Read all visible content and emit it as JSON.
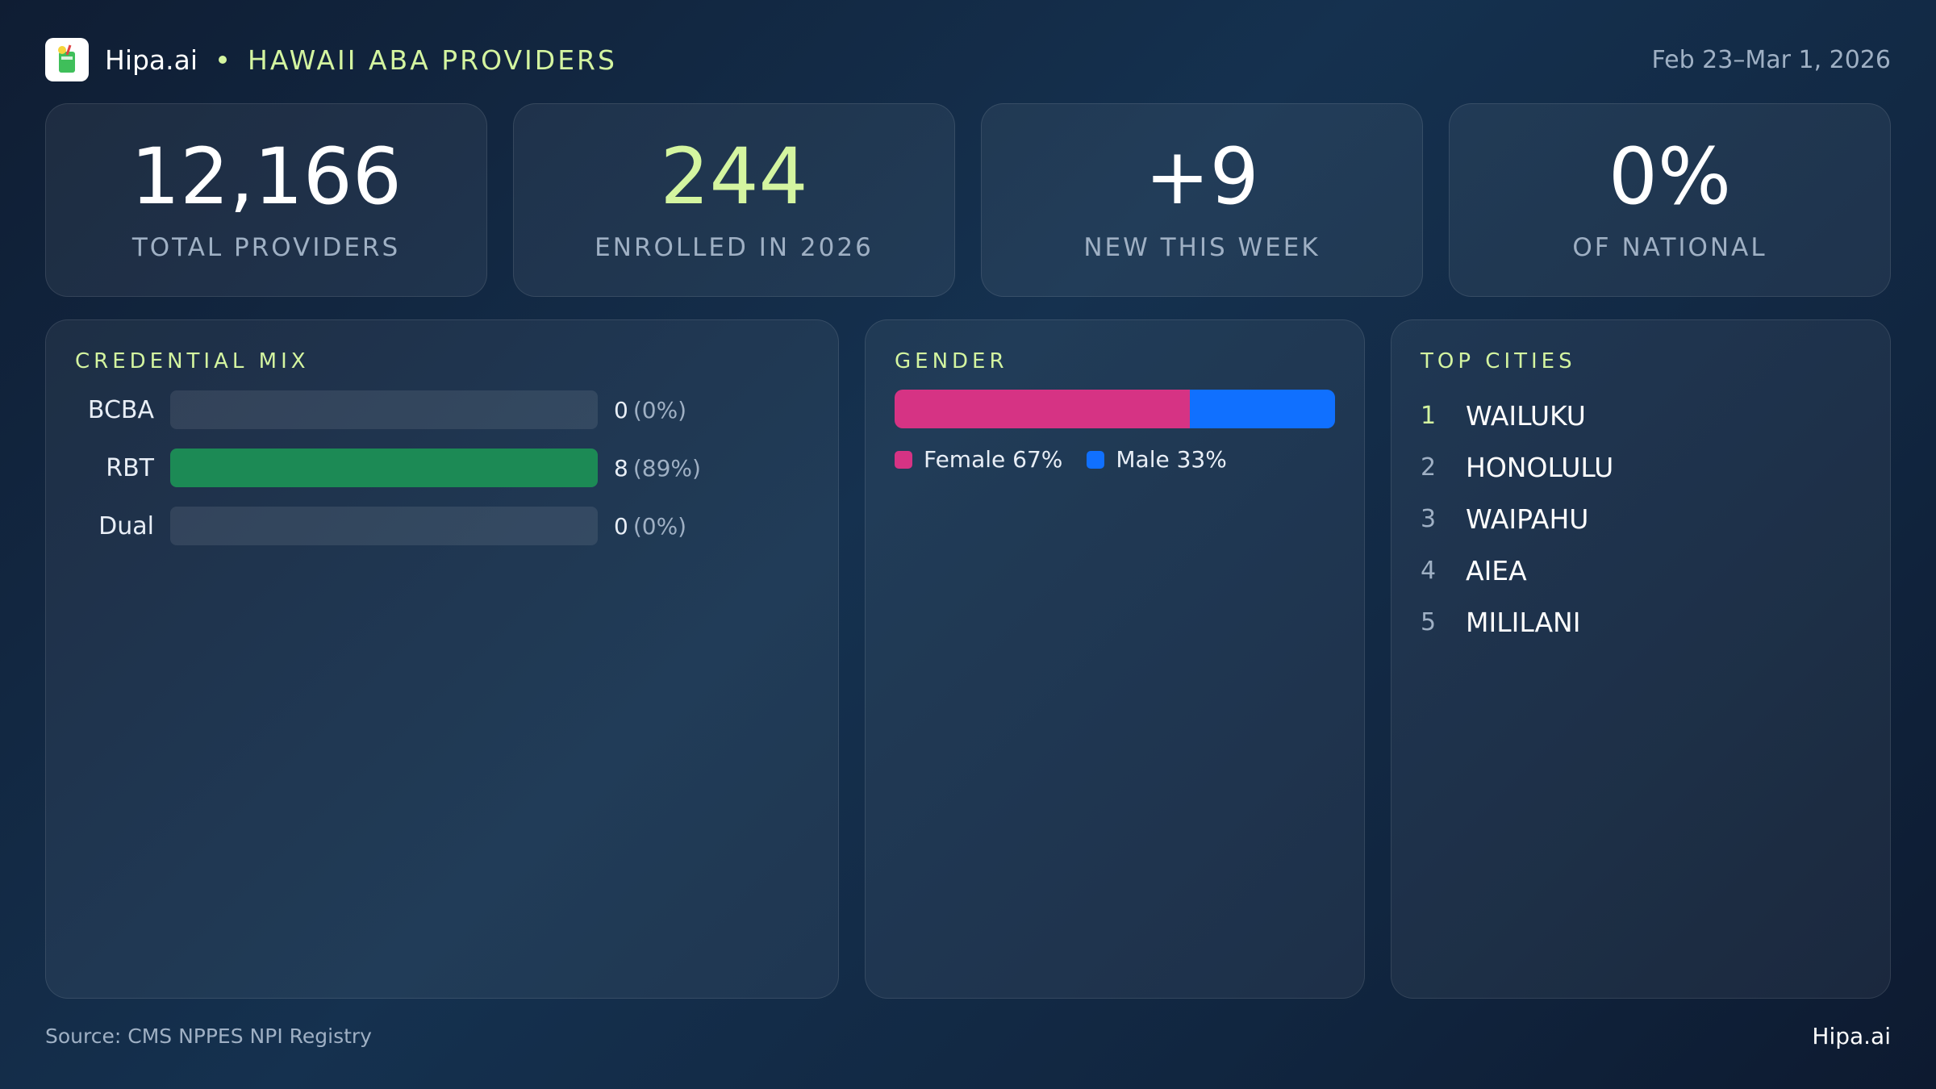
{
  "header": {
    "brand": "Hipa.ai",
    "region": "HAWAII ABA PROVIDERS",
    "date_range": "Feb 23–Mar 1, 2026",
    "logo_icon": "cocktail-icon"
  },
  "stats": [
    {
      "value": "12,166",
      "label": "TOTAL PROVIDERS"
    },
    {
      "value": "244",
      "label": "ENROLLED IN 2026"
    },
    {
      "value": "+9",
      "label": "NEW THIS WEEK"
    },
    {
      "value": "0%",
      "label": "OF NATIONAL"
    }
  ],
  "credential_mix": {
    "title": "CREDENTIAL MIX",
    "rows": [
      {
        "label": "BCBA",
        "count": "0",
        "pct": "(0%)",
        "fraction": 0
      },
      {
        "label": "RBT",
        "count": "8",
        "pct": "(89%)",
        "fraction": 1
      },
      {
        "label": "Dual",
        "count": "0",
        "pct": "(0%)",
        "fraction": 0
      }
    ]
  },
  "gender": {
    "title": "GENDER",
    "female_label": "Female 67%",
    "male_label": "Male 33%",
    "female_fraction": 0.67,
    "male_fraction": 0.33,
    "female_color": "#d63384",
    "male_color": "#1070ff"
  },
  "top_cities": {
    "title": "TOP CITIES",
    "items": [
      {
        "rank": "1",
        "name": "WAILUKU"
      },
      {
        "rank": "2",
        "name": "HONOLULU"
      },
      {
        "rank": "3",
        "name": "WAIPAHU"
      },
      {
        "rank": "4",
        "name": "AIEA"
      },
      {
        "rank": "5",
        "name": "MILILANI"
      }
    ]
  },
  "footer": {
    "source": "Source: CMS NPPES NPI Registry",
    "brand": "Hipa.ai"
  }
}
